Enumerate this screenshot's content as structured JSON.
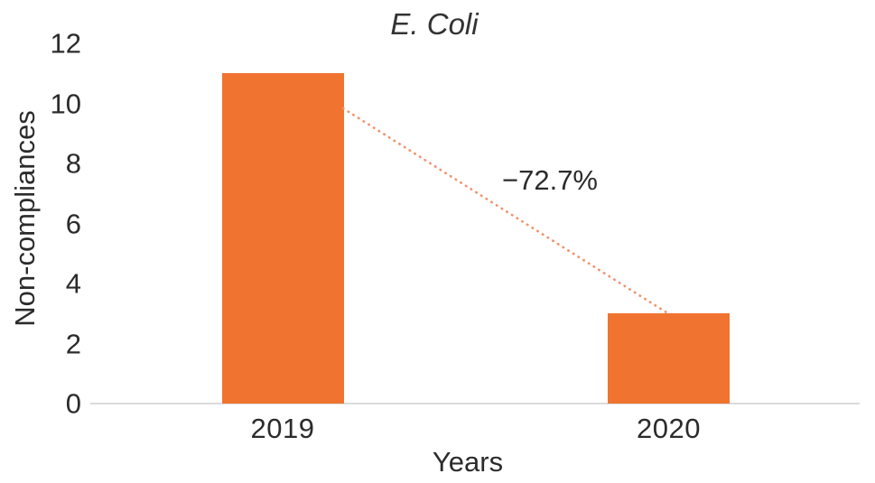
{
  "chart_data": {
    "type": "bar",
    "title": "E. Coli",
    "categories": [
      "2019",
      "2020"
    ],
    "values": [
      11,
      3
    ],
    "xlabel": "Years",
    "ylabel": "Non-compliances",
    "ylim": [
      0,
      12
    ],
    "yticks": [
      0,
      2,
      4,
      6,
      8,
      10,
      12
    ],
    "annotation": "−72.7%",
    "grid": false,
    "legend_position": "none",
    "colors": {
      "bar": "#F07430",
      "trend_line": "#F2916A",
      "axis_line": "#DBDBDB",
      "text": "#2B2B2B"
    }
  }
}
